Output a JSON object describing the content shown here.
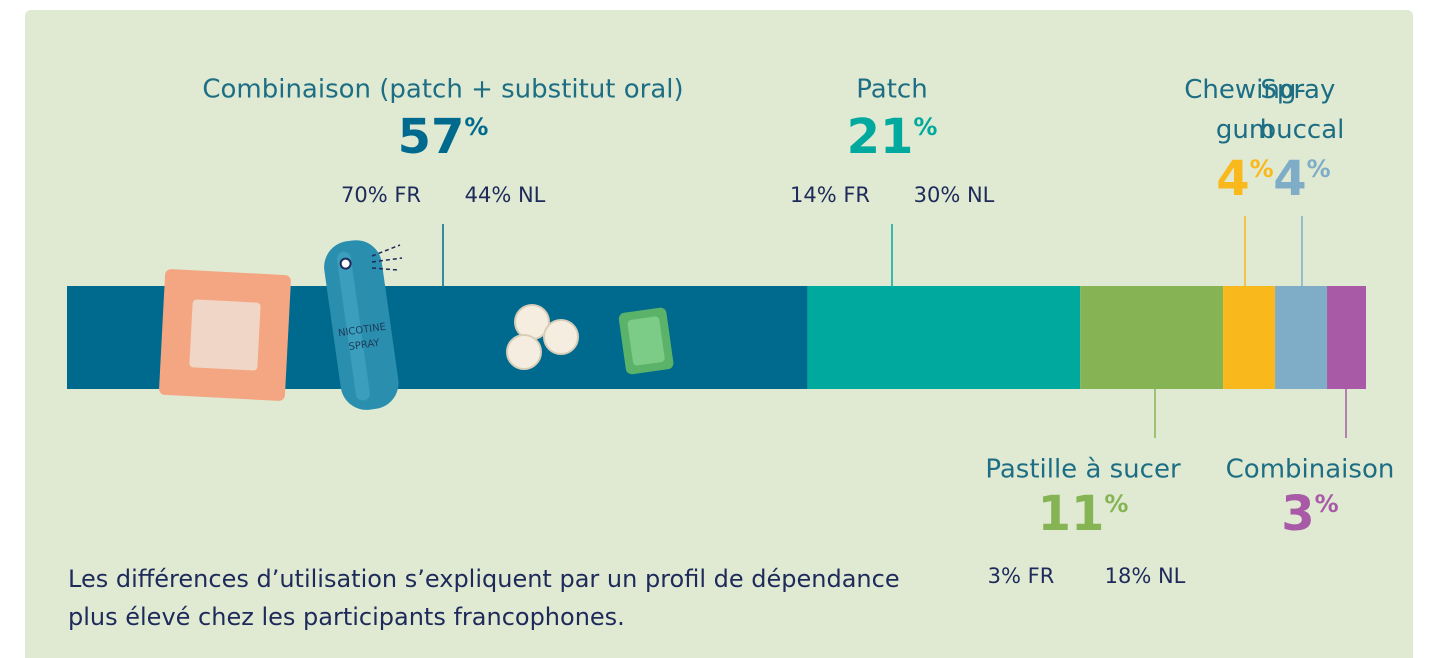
{
  "chart_data": {
    "type": "bar",
    "categories": [
      "Combinaison (patch + substitut oral)",
      "Patch",
      "Pastille à sucer",
      "Chewing-gum",
      "Spray buccal",
      "Combinaison"
    ],
    "values": [
      57,
      21,
      11,
      4,
      4,
      3
    ],
    "value_labels": [
      "57%",
      "21%",
      "11%",
      "4%",
      "4%",
      "3%"
    ],
    "colors": [
      "#006a8e",
      "#00a99d",
      "#86b454",
      "#f9b91c",
      "#7fadc8",
      "#a85aa6"
    ],
    "details": [
      [
        "70% FR",
        "44% NL"
      ],
      [
        "14% FR",
        "30% NL"
      ],
      [
        "3% FR",
        "18% NL"
      ],
      [],
      [],
      []
    ],
    "note": "Les différences d’utilisation s’expliquent par un profil de dépendance plus élevé chez les participants francophones."
  }
}
